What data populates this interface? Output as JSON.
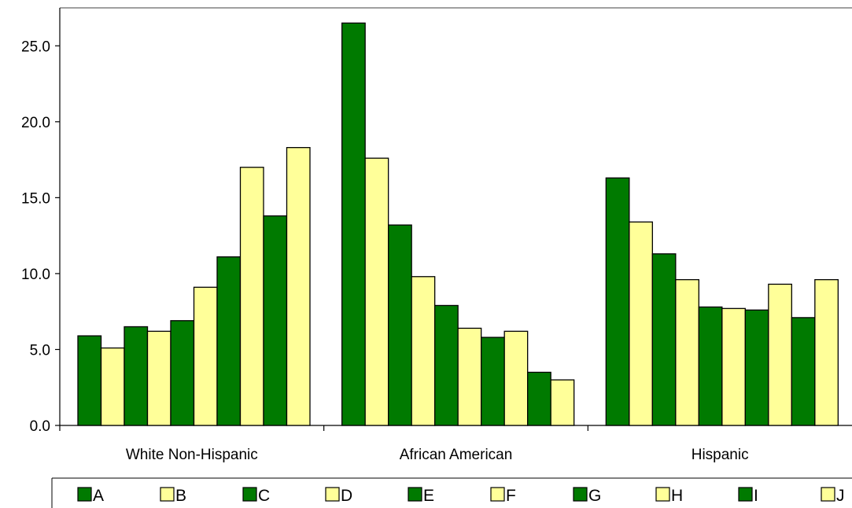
{
  "chart_data": {
    "type": "bar",
    "title": "",
    "xlabel": "",
    "ylabel": "",
    "categories": [
      "White Non-Hispanic",
      "African American",
      "Hispanic"
    ],
    "ylim": [
      0,
      27.5
    ],
    "yticks": [
      "0.0",
      "5.0",
      "10.0",
      "15.0",
      "20.0",
      "25.0"
    ],
    "grid": false,
    "legend_position": "bottom",
    "series": [
      {
        "name": "A",
        "color": "#007a00",
        "values": [
          5.9,
          26.5,
          16.3
        ]
      },
      {
        "name": "B",
        "color": "#ffff99",
        "values": [
          5.1,
          17.6,
          13.4
        ]
      },
      {
        "name": "C",
        "color": "#007a00",
        "values": [
          6.5,
          13.2,
          11.3
        ]
      },
      {
        "name": "D",
        "color": "#ffff99",
        "values": [
          6.2,
          9.8,
          9.6
        ]
      },
      {
        "name": "E",
        "color": "#007a00",
        "values": [
          6.9,
          7.9,
          7.8
        ]
      },
      {
        "name": "F",
        "color": "#ffff99",
        "values": [
          9.1,
          6.4,
          7.7
        ]
      },
      {
        "name": "G",
        "color": "#007a00",
        "values": [
          11.1,
          5.8,
          7.6
        ]
      },
      {
        "name": "H",
        "color": "#ffff99",
        "values": [
          17.0,
          6.2,
          9.3
        ]
      },
      {
        "name": "I",
        "color": "#007a00",
        "values": [
          13.8,
          3.5,
          7.1
        ]
      },
      {
        "name": "J",
        "color": "#ffff99",
        "values": [
          18.3,
          3.0,
          9.6
        ]
      }
    ]
  }
}
